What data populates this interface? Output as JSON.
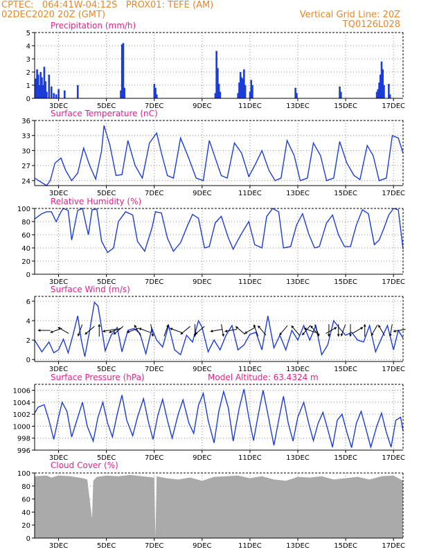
{
  "header": {
    "line1_left": "CPTEC:   064:41W-04:12S   PROX01: TEFE (AM)",
    "line2_left": "02DEC2020 20Z (GMT)",
    "line1_right": "Vertical Grid Line: 20Z",
    "line2_right": "TQ0126L028",
    "color": "#e8862a"
  },
  "colors": {
    "title": "#e0228a",
    "line": "#1a3cd8",
    "cloud": "#aaaaaa",
    "grid": "#888888"
  },
  "x_ticks": [
    "3DEC",
    "5DEC",
    "7DEC",
    "9DEC",
    "11DEC",
    "13DEC",
    "15DEC",
    "17DEC"
  ],
  "panels": [
    {
      "title": "Precipitation (mm/h)",
      "extra": ""
    },
    {
      "title": "Surface Temperature (nC)",
      "extra": ""
    },
    {
      "title": "Relative Humidity (%)",
      "extra": ""
    },
    {
      "title": "Surface Wind (m/s)",
      "extra": ""
    },
    {
      "title": "Surface Pressure (hPa)",
      "extra": "Model Altitude: 63.4324 m"
    },
    {
      "title": "Cloud Cover (%)",
      "extra": ""
    }
  ],
  "chart_data": [
    {
      "type": "bar",
      "title": "Precipitation (mm/h)",
      "x_unit": "days since 02DEC2020 20Z",
      "ylim": [
        0,
        5
      ],
      "yticks": [
        0,
        1,
        2,
        3,
        4,
        5
      ],
      "values": [
        [
          0.05,
          1.5
        ],
        [
          0.1,
          2.2
        ],
        [
          0.15,
          1.8
        ],
        [
          0.2,
          1.0
        ],
        [
          0.25,
          2.0
        ],
        [
          0.3,
          1.6
        ],
        [
          0.35,
          1.0
        ],
        [
          0.4,
          2.4
        ],
        [
          0.45,
          1.3
        ],
        [
          0.5,
          0.5
        ],
        [
          0.6,
          1.8
        ],
        [
          0.7,
          0.9
        ],
        [
          0.8,
          0.4
        ],
        [
          0.9,
          0.3
        ],
        [
          1.0,
          0.7
        ],
        [
          1.25,
          0.6
        ],
        [
          1.8,
          1.0
        ],
        [
          3.6,
          0.6
        ],
        [
          3.65,
          4.1
        ],
        [
          3.7,
          4.2
        ],
        [
          3.75,
          0.8
        ],
        [
          5.0,
          1.1
        ],
        [
          5.05,
          0.8
        ],
        [
          5.1,
          0.3
        ],
        [
          7.55,
          0.4
        ],
        [
          7.6,
          3.6
        ],
        [
          7.65,
          2.3
        ],
        [
          7.7,
          1.1
        ],
        [
          7.75,
          0.5
        ],
        [
          8.5,
          0.4
        ],
        [
          8.55,
          1.2
        ],
        [
          8.6,
          2.0
        ],
        [
          8.65,
          1.6
        ],
        [
          8.7,
          1.5
        ],
        [
          8.75,
          2.2
        ],
        [
          8.8,
          1.0
        ],
        [
          9.0,
          0.5
        ],
        [
          9.05,
          1.4
        ],
        [
          9.1,
          1.0
        ],
        [
          10.9,
          0.8
        ],
        [
          10.95,
          0.4
        ],
        [
          12.75,
          0.9
        ],
        [
          12.8,
          0.5
        ],
        [
          14.3,
          0.5
        ],
        [
          14.35,
          0.7
        ],
        [
          14.4,
          1.2
        ],
        [
          14.45,
          1.8
        ],
        [
          14.5,
          2.8
        ],
        [
          14.55,
          2.2
        ],
        [
          14.6,
          1.0
        ],
        [
          14.8,
          1.1
        ],
        [
          14.85,
          0.3
        ]
      ]
    },
    {
      "type": "line",
      "title": "Surface Temperature (nC)",
      "ylim": [
        23,
        36
      ],
      "yticks": [
        24,
        27,
        30,
        33,
        36
      ],
      "x": [
        0,
        0.5,
        0.65,
        0.85,
        1.1,
        1.3,
        1.55,
        1.8,
        2.05,
        2.3,
        2.55,
        2.8,
        2.9,
        3.15,
        3.4,
        3.65,
        3.9,
        4.2,
        4.5,
        4.8,
        5.1,
        5.3,
        5.55,
        5.8,
        6.1,
        6.4,
        6.75,
        7.05,
        7.3,
        7.55,
        7.8,
        8.05,
        8.35,
        8.65,
        8.95,
        9.2,
        9.5,
        9.8,
        10.05,
        10.3,
        10.55,
        10.85,
        11.1,
        11.4,
        11.65,
        11.95,
        12.2,
        12.5,
        12.75,
        13.05,
        13.35,
        13.6,
        13.9,
        14.15,
        14.4,
        14.7,
        14.95,
        15.2,
        15.4
      ],
      "values": [
        24.5,
        23.0,
        24.0,
        27.5,
        28.5,
        26.0,
        24.0,
        25.5,
        30.5,
        27.0,
        24.3,
        30.0,
        35.0,
        31.0,
        25.0,
        25.2,
        32.0,
        27.0,
        24.5,
        31.5,
        33.5,
        29.5,
        25.0,
        24.5,
        32.5,
        29.0,
        24.5,
        24.0,
        32.0,
        28.5,
        25.0,
        24.5,
        31.5,
        29.5,
        24.8,
        27.0,
        30.0,
        26.0,
        24.0,
        24.5,
        32.0,
        29.0,
        24.0,
        24.5,
        31.5,
        29.0,
        24.0,
        24.5,
        31.8,
        27.5,
        25.0,
        24.2,
        31.0,
        29.0,
        24.0,
        24.5,
        33.0,
        32.5,
        29.5
      ]
    },
    {
      "type": "line",
      "title": "Relative Humidity (%)",
      "ylim": [
        0,
        100
      ],
      "yticks": [
        0,
        20,
        40,
        60,
        80,
        100
      ],
      "x": [
        0,
        0.3,
        0.5,
        0.7,
        0.9,
        1.1,
        1.2,
        1.4,
        1.55,
        1.8,
        2.0,
        2.15,
        2.25,
        2.4,
        2.6,
        2.8,
        3.05,
        3.3,
        3.5,
        3.6,
        3.8,
        4.1,
        4.3,
        4.6,
        4.9,
        5.05,
        5.3,
        5.55,
        5.8,
        6.1,
        6.4,
        6.6,
        6.85,
        7.1,
        7.3,
        7.55,
        7.8,
        8.1,
        8.3,
        8.5,
        8.7,
        8.95,
        9.2,
        9.5,
        9.7,
        9.95,
        10.2,
        10.4,
        10.7,
        10.95,
        11.2,
        11.45,
        11.7,
        11.9,
        12.2,
        12.45,
        12.7,
        12.95,
        13.2,
        13.45,
        13.7,
        13.95,
        14.2,
        14.4,
        14.6,
        14.8,
        15.0,
        15.2,
        15.4
      ],
      "values": [
        84,
        92,
        95,
        95,
        80,
        95,
        100,
        97,
        52,
        97,
        100,
        75,
        60,
        98,
        99,
        50,
        33,
        40,
        80,
        85,
        95,
        90,
        50,
        35,
        70,
        95,
        93,
        55,
        35,
        48,
        75,
        91,
        85,
        40,
        42,
        78,
        88,
        55,
        38,
        52,
        65,
        80,
        45,
        40,
        88,
        100,
        95,
        40,
        42,
        75,
        92,
        62,
        40,
        42,
        78,
        90,
        60,
        42,
        42,
        75,
        98,
        92,
        45,
        52,
        70,
        90,
        100,
        98,
        38
      ]
    },
    {
      "type": "line",
      "title": "Surface Wind (m/s)",
      "ylim": [
        -0.2,
        6.5
      ],
      "yticks": [
        0,
        2,
        4,
        6
      ],
      "x": [
        0,
        0.3,
        0.6,
        0.8,
        1.0,
        1.2,
        1.4,
        1.6,
        1.8,
        1.95,
        2.1,
        2.3,
        2.5,
        2.65,
        2.75,
        2.95,
        3.2,
        3.45,
        3.65,
        3.9,
        4.15,
        4.4,
        4.65,
        4.9,
        5.1,
        5.35,
        5.6,
        5.85,
        6.1,
        6.35,
        6.6,
        6.85,
        7.0,
        7.25,
        7.5,
        7.75,
        8.0,
        8.25,
        8.5,
        8.75,
        9.0,
        9.25,
        9.5,
        9.75,
        10.0,
        10.25,
        10.5,
        10.75,
        11.0,
        11.25,
        11.5,
        11.75,
        12.0,
        12.25,
        12.5,
        12.75,
        13.0,
        13.25,
        13.5,
        13.75,
        14.0,
        14.25,
        14.5,
        14.75,
        15.0,
        15.2,
        15.4
      ],
      "values": [
        2.0,
        0.8,
        1.8,
        0.7,
        1.0,
        2.1,
        0.7,
        2.5,
        4.5,
        2.0,
        0.3,
        3.0,
        5.9,
        5.5,
        4.0,
        0.9,
        2.5,
        3.3,
        0.8,
        3.0,
        3.2,
        2.7,
        0.6,
        3.2,
        2.0,
        1.3,
        3.5,
        1.0,
        0.5,
        2.5,
        1.8,
        4.0,
        3.3,
        0.8,
        2.0,
        1.0,
        2.5,
        3.5,
        1.0,
        1.5,
        2.6,
        2.8,
        1.0,
        4.5,
        1.2,
        2.5,
        1.0,
        3.0,
        2.0,
        3.5,
        2.0,
        3.5,
        0.5,
        1.5,
        4.0,
        3.2,
        2.5,
        2.8,
        2.0,
        1.8,
        3.5,
        0.8,
        2.2,
        3.5,
        1.0,
        3.0,
        2.2
      ],
      "arrows": [
        [
          0.4,
          180
        ],
        [
          0.9,
          160
        ],
        [
          1.2,
          210
        ],
        [
          1.9,
          110
        ],
        [
          2.3,
          140
        ],
        [
          2.7,
          270
        ],
        [
          3.1,
          170
        ],
        [
          3.35,
          160
        ],
        [
          3.5,
          140
        ],
        [
          4.1,
          160
        ],
        [
          4.3,
          240
        ],
        [
          4.6,
          200
        ],
        [
          4.9,
          80
        ],
        [
          5.5,
          290
        ],
        [
          5.9,
          200
        ],
        [
          6.3,
          140
        ],
        [
          6.7,
          90
        ],
        [
          6.9,
          140
        ],
        [
          7.6,
          170
        ],
        [
          7.85,
          80
        ],
        [
          8.2,
          170
        ],
        [
          8.6,
          220
        ],
        [
          9.0,
          150
        ],
        [
          9.25,
          250
        ],
        [
          9.5,
          230
        ],
        [
          10.4,
          130
        ],
        [
          10.9,
          230
        ],
        [
          11.35,
          130
        ],
        [
          11.5,
          200
        ],
        [
          11.7,
          230
        ],
        [
          11.8,
          70
        ],
        [
          12.3,
          90
        ],
        [
          12.4,
          330
        ],
        [
          12.7,
          90
        ],
        [
          12.9,
          110
        ],
        [
          13.2,
          90
        ],
        [
          13.5,
          330
        ],
        [
          13.8,
          270
        ],
        [
          14.2,
          120
        ],
        [
          14.5,
          240
        ],
        [
          14.9,
          100
        ],
        [
          15.25,
          170
        ]
      ]
    },
    {
      "type": "line",
      "title": "Surface Pressure (hPa)",
      "ylim": [
        996,
        1007
      ],
      "yticks": [
        996,
        998,
        1000,
        1002,
        1004,
        1006
      ],
      "x": [
        0,
        0.15,
        0.4,
        0.6,
        0.8,
        1.0,
        1.15,
        1.35,
        1.55,
        1.75,
        2.0,
        2.2,
        2.45,
        2.65,
        2.85,
        3.05,
        3.25,
        3.45,
        3.65,
        3.85,
        4.1,
        4.3,
        4.55,
        4.75,
        4.95,
        5.15,
        5.35,
        5.55,
        5.75,
        6.0,
        6.2,
        6.45,
        6.65,
        6.85,
        7.05,
        7.25,
        7.5,
        7.7,
        7.9,
        8.1,
        8.3,
        8.55,
        8.75,
        8.95,
        9.15,
        9.35,
        9.55,
        9.75,
        10.0,
        10.2,
        10.4,
        10.6,
        10.8,
        11.0,
        11.25,
        11.45,
        11.65,
        11.85,
        12.05,
        12.25,
        12.45,
        12.65,
        12.85,
        13.05,
        13.25,
        13.45,
        13.65,
        13.85,
        14.05,
        14.3,
        14.5,
        14.7,
        14.9,
        15.1,
        15.3,
        15.4
      ],
      "values": [
        1002.2,
        1003.2,
        1003.6,
        1001.0,
        997.8,
        1001.5,
        1004.0,
        1002.5,
        998.2,
        1000.8,
        1004.0,
        1000.0,
        997.5,
        1001.5,
        1004.0,
        1000.5,
        998.2,
        1002.0,
        1005.2,
        1001.0,
        998.4,
        1001.5,
        1004.6,
        1000.8,
        997.8,
        1001.8,
        1004.5,
        1001.0,
        998.0,
        1002.0,
        1004.4,
        1000.5,
        998.8,
        1003.5,
        1005.5,
        1001.0,
        997.2,
        1002.5,
        1005.8,
        1003.0,
        997.5,
        1003.0,
        1006.2,
        1001.5,
        997.6,
        1002.0,
        1006.0,
        1002.0,
        996.8,
        1001.0,
        1005.0,
        1000.5,
        997.5,
        1001.5,
        1004.0,
        1000.6,
        997.6,
        1000.5,
        1002.3,
        999.5,
        996.5,
        1001.0,
        1002.0,
        999.0,
        996.4,
        1000.5,
        1002.5,
        999.5,
        996.5,
        1000.0,
        1002.2,
        999.0,
        996.5,
        1001.0,
        1001.5,
        999.2
      ]
    },
    {
      "type": "area",
      "title": "Cloud Cover (%)",
      "ylim": [
        0,
        100
      ],
      "yticks": [
        0,
        20,
        40,
        60,
        80,
        100
      ],
      "x": [
        0,
        0.5,
        0.7,
        1.0,
        1.5,
        2.0,
        2.2,
        2.4,
        2.45,
        2.6,
        3.0,
        3.5,
        4.0,
        4.5,
        5.0,
        5.05,
        5.1,
        5.5,
        6.0,
        6.5,
        7.0,
        7.5,
        8.0,
        8.5,
        9.0,
        9.5,
        10.0,
        10.5,
        11.0,
        11.5,
        12.0,
        12.5,
        13.0,
        13.5,
        14.0,
        14.5,
        15.0,
        15.4
      ],
      "values": [
        95,
        96,
        93,
        96,
        95,
        92,
        90,
        30,
        88,
        94,
        96,
        95,
        97,
        95,
        93,
        0,
        95,
        92,
        90,
        93,
        88,
        94,
        95,
        96,
        92,
        95,
        90,
        88,
        94,
        93,
        95,
        90,
        92,
        94,
        90,
        95,
        96,
        88
      ]
    }
  ]
}
